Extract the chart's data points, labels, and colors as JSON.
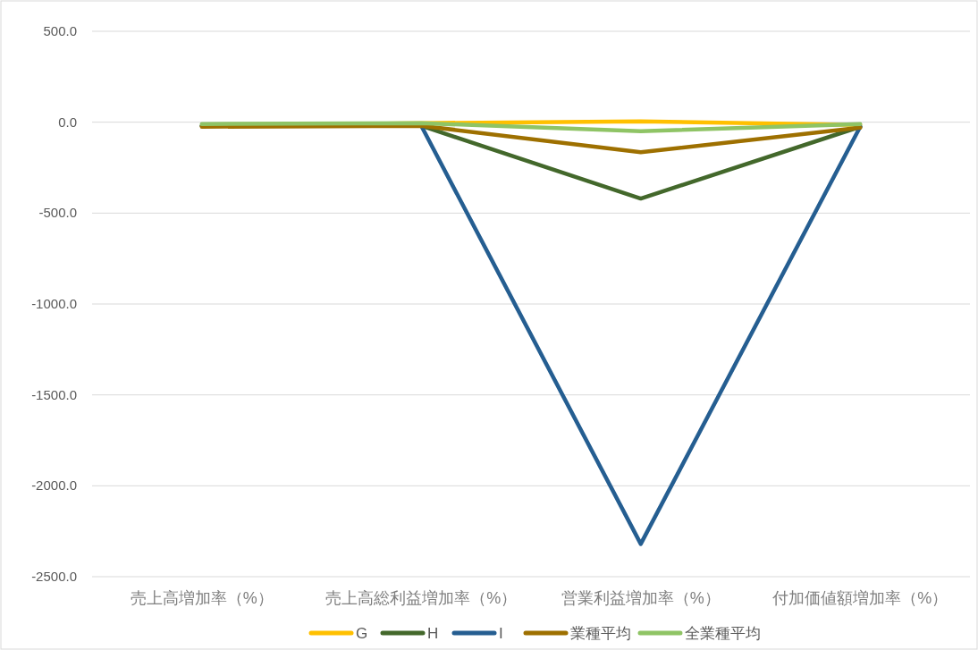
{
  "chart_data": {
    "type": "line",
    "categories": [
      "売上高増加率（%）",
      "売上高総利益増加率（%）",
      "営業利益増加率（%）",
      "付加価値額増加率（%）"
    ],
    "series": [
      {
        "name": "G",
        "color": "#ffc000",
        "values": [
          -20,
          -5,
          5,
          -15
        ]
      },
      {
        "name": "H",
        "color": "#43682b",
        "values": [
          -20,
          -20,
          -420,
          -25
        ]
      },
      {
        "name": "I",
        "color": "#255e91",
        "values": [
          -20,
          -20,
          -2320,
          -25
        ]
      },
      {
        "name": "業種平均",
        "color": "#9e7000",
        "values": [
          -25,
          -20,
          -165,
          -30
        ]
      },
      {
        "name": "全業種平均",
        "color": "#8fc465",
        "values": [
          -10,
          -5,
          -50,
          -10
        ]
      }
    ],
    "ylim": [
      -2500,
      500
    ],
    "yticks": [
      {
        "value": 500,
        "label": "500.0"
      },
      {
        "value": 0,
        "label": "0.0"
      },
      {
        "value": -500,
        "label": "-500.0"
      },
      {
        "value": -1000,
        "label": "-1000.0"
      },
      {
        "value": -1500,
        "label": "-1500.0"
      },
      {
        "value": -2000,
        "label": "-2000.0"
      },
      {
        "value": -2500,
        "label": "-2500.0"
      }
    ],
    "grid": "y",
    "legend": "bottom",
    "marker": "none",
    "line_style": "solid"
  }
}
